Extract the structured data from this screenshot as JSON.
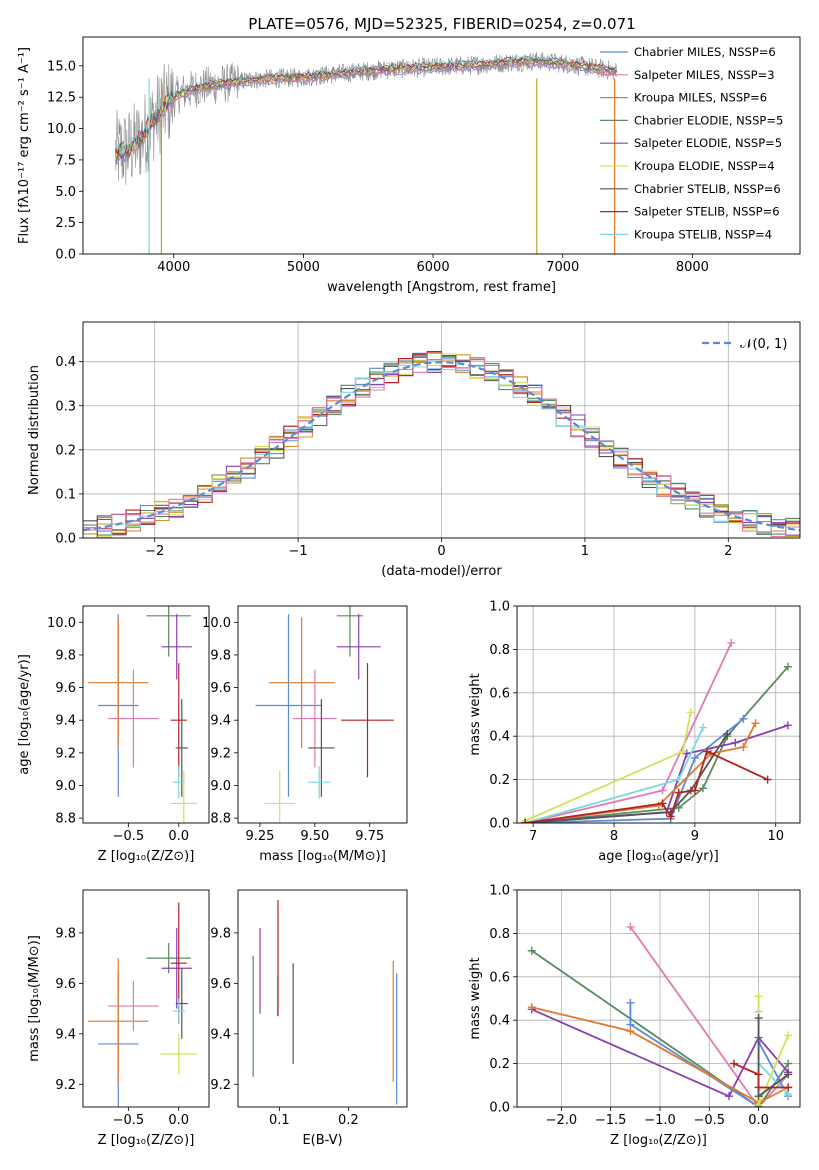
{
  "figure": {
    "title": "PLATE=0576, MJD=52325, FIBERID=0254, z=0.071"
  },
  "colors": {
    "series": [
      "#5b8bd6",
      "#e07b2c",
      "#c99a2e",
      "#5b8a5e",
      "#8a3fb0",
      "#d4e05a",
      "#555555",
      "#b22222",
      "#7fd6e0",
      "#e07ab0",
      "#8a8a8a"
    ]
  },
  "chart_data": [
    {
      "id": "spectrum",
      "type": "line",
      "xlabel": "wavelength [Angstrom, rest frame]",
      "ylabel": "Flux [fλ10⁻¹⁷ erg cm⁻² s⁻¹ A⁻¹]",
      "xlim": [
        3300,
        8830
      ],
      "ylim": [
        0,
        17.3
      ],
      "xticks": [
        "4000",
        "5000",
        "6000",
        "7000",
        "8000"
      ],
      "yticks": [
        "0.0",
        "2.5",
        "5.0",
        "7.5",
        "10.0",
        "12.5",
        "15.0"
      ],
      "legend_position": "right",
      "series": [
        {
          "name": "Chabrier MILES, NSSP=6",
          "color": "#5b8bd6"
        },
        {
          "name": "Salpeter MILES, NSSP=3",
          "color": "#e07ab0"
        },
        {
          "name": "Kroupa MILES, NSSP=6",
          "color": "#e07b2c"
        },
        {
          "name": "Chabrier ELODIE, NSSP=5",
          "color": "#5b8a5e"
        },
        {
          "name": "Salpeter ELODIE, NSSP=5",
          "color": "#8a3fb0"
        },
        {
          "name": "Kroupa ELODIE, NSSP=4",
          "color": "#d4e05a"
        },
        {
          "name": "Chabrier STELIB, NSSP=6",
          "color": "#555555"
        },
        {
          "name": "Salpeter STELIB, NSSP=6",
          "color": "#b22222"
        },
        {
          "name": "Kroupa STELIB, NSSP=4",
          "color": "#7fd6e0"
        }
      ],
      "continuum": {
        "x": [
          3550,
          3650,
          3750,
          3850,
          3950,
          4050,
          4200,
          4400,
          4600,
          4800,
          5000,
          5200,
          5400,
          5600,
          5800,
          6000,
          6200,
          6400,
          6600,
          6800,
          7000,
          7200,
          7400,
          7600,
          7800,
          8000,
          8200,
          8400,
          8600,
          8800
        ],
        "y": [
          8.0,
          8.3,
          9.2,
          10.8,
          12.0,
          12.8,
          13.3,
          13.6,
          13.9,
          14.0,
          14.1,
          14.3,
          14.5,
          14.7,
          14.8,
          14.9,
          15.0,
          15.1,
          15.3,
          15.4,
          15.2,
          14.9,
          14.6,
          14.0,
          13.6,
          13.3,
          13.1,
          12.9,
          12.7,
          12.5
        ]
      }
    },
    {
      "id": "residual-hist",
      "type": "bar",
      "xlabel": "(data-model)/error",
      "ylabel": "Normed distribution",
      "xlim": [
        -2.5,
        2.5
      ],
      "ylim": [
        0,
        0.49
      ],
      "xticks": [
        "−2",
        "−1",
        "0",
        "1",
        "2"
      ],
      "yticks": [
        "0.0",
        "0.1",
        "0.2",
        "0.3",
        "0.4"
      ],
      "legend": "𝒩(0, 1)",
      "legend_position": "top-right",
      "bin_width": 0.1,
      "grid": true
    },
    {
      "id": "age-vs-z",
      "type": "scatter",
      "xlabel": "Z [log₁₀(Z/Z⊙)]",
      "ylabel": "age  [log₁₀(age/yr)]",
      "xlim": [
        -0.95,
        0.3
      ],
      "ylim": [
        8.77,
        10.1
      ],
      "xticks": [
        "−0.5",
        "0.0"
      ],
      "yticks": [
        "8.8",
        "9.0",
        "9.2",
        "9.4",
        "9.6",
        "9.8",
        "10.0"
      ],
      "points": [
        {
          "color": "#5b8bd6",
          "x": -0.6,
          "xerr": 0.2,
          "y": 9.49,
          "yerr": 0.56
        },
        {
          "color": "#e07b2c",
          "x": -0.6,
          "xerr": 0.3,
          "y": 9.63,
          "yerr": 0.4
        },
        {
          "color": "#e07ab0",
          "x": -0.45,
          "xerr": 0.25,
          "y": 9.41,
          "yerr": 0.3
        },
        {
          "color": "#5b8a5e",
          "x": -0.1,
          "xerr": 0.22,
          "y": 10.04,
          "yerr": 0.25
        },
        {
          "color": "#8a3fb0",
          "x": -0.02,
          "xerr": 0.15,
          "y": 9.85,
          "yerr": 0.2
        },
        {
          "color": "#b22222",
          "x": 0.0,
          "xerr": 0.08,
          "y": 9.4,
          "yerr": 0.35
        },
        {
          "color": "#555555",
          "x": 0.03,
          "xerr": 0.06,
          "y": 9.23,
          "yerr": 0.3
        },
        {
          "color": "#7fd6e0",
          "x": 0.0,
          "xerr": 0.06,
          "y": 9.02,
          "yerr": 0.1
        },
        {
          "color": "#d4e05a",
          "x": 0.05,
          "xerr": 0.13,
          "y": 8.89,
          "yerr": 0.2
        }
      ]
    },
    {
      "id": "age-vs-mass",
      "type": "scatter",
      "xlabel": "mass [log₁₀(M/M⊙)]",
      "ylabel": "",
      "xlim": [
        9.15,
        9.92
      ],
      "ylim": [
        8.77,
        10.1
      ],
      "xticks": [
        "9.25",
        "9.50",
        "9.75"
      ],
      "yticks": [
        "8.8",
        "9.0",
        "9.2",
        "9.4",
        "9.6",
        "9.8",
        "10.0"
      ],
      "points": [
        {
          "color": "#5b8bd6",
          "x": 9.38,
          "xerr": 0.15,
          "y": 9.49,
          "yerr": 0.56
        },
        {
          "color": "#e07b2c",
          "x": 9.44,
          "xerr": 0.15,
          "y": 9.63,
          "yerr": 0.4
        },
        {
          "color": "#e07ab0",
          "x": 9.5,
          "xerr": 0.1,
          "y": 9.41,
          "yerr": 0.3
        },
        {
          "color": "#5b8a5e",
          "x": 9.66,
          "xerr": 0.06,
          "y": 10.04,
          "yerr": 0.25
        },
        {
          "color": "#8a3fb0",
          "x": 9.7,
          "xerr": 0.1,
          "y": 9.85,
          "yerr": 0.2
        },
        {
          "color": "#b22222",
          "x": 9.74,
          "xerr": 0.12,
          "y": 9.4,
          "yerr": 0.35
        },
        {
          "color": "#555555",
          "x": 9.53,
          "xerr": 0.06,
          "y": 9.23,
          "yerr": 0.3
        },
        {
          "color": "#7fd6e0",
          "x": 9.52,
          "xerr": 0.05,
          "y": 9.02,
          "yerr": 0.1
        },
        {
          "color": "#d4e05a",
          "x": 9.34,
          "xerr": 0.07,
          "y": 8.89,
          "yerr": 0.2
        }
      ]
    },
    {
      "id": "weight-vs-age",
      "type": "line",
      "xlabel": "age  [log₁₀(age/yr)]",
      "ylabel": "mass weight",
      "xlim": [
        6.8,
        10.3
      ],
      "ylim": [
        0,
        1.0
      ],
      "xticks": [
        "7",
        "8",
        "9",
        "10"
      ],
      "yticks": [
        "0.0",
        "0.2",
        "0.4",
        "0.6",
        "0.8",
        "1.0"
      ],
      "grid": true,
      "series": [
        {
          "color": "#e07ab0",
          "points": [
            [
              6.9,
              0.0
            ],
            [
              8.6,
              0.15
            ],
            [
              9.45,
              0.83
            ]
          ]
        },
        {
          "color": "#5b8a5e",
          "points": [
            [
              6.9,
              0.0
            ],
            [
              8.8,
              0.07
            ],
            [
              9.1,
              0.16
            ],
            [
              9.4,
              0.4
            ],
            [
              10.15,
              0.72
            ]
          ]
        },
        {
          "color": "#8a3fb0",
          "points": [
            [
              6.9,
              0.0
            ],
            [
              8.65,
              0.05
            ],
            [
              8.9,
              0.32
            ],
            [
              9.5,
              0.37
            ],
            [
              10.15,
              0.45
            ]
          ]
        },
        {
          "color": "#5b8bd6",
          "points": [
            [
              6.9,
              0.0
            ],
            [
              8.7,
              0.02
            ],
            [
              9.0,
              0.3
            ],
            [
              9.6,
              0.48
            ]
          ]
        },
        {
          "color": "#e07b2c",
          "points": [
            [
              6.9,
              0.0
            ],
            [
              8.55,
              0.08
            ],
            [
              9.2,
              0.32
            ],
            [
              9.6,
              0.35
            ],
            [
              9.75,
              0.46
            ]
          ]
        },
        {
          "color": "#7fd6e0",
          "points": [
            [
              6.9,
              0.0
            ],
            [
              8.8,
              0.2
            ],
            [
              9.1,
              0.44
            ]
          ]
        },
        {
          "color": "#d4e05a",
          "points": [
            [
              6.9,
              0.01
            ],
            [
              8.85,
              0.33
            ],
            [
              8.95,
              0.51
            ]
          ]
        },
        {
          "color": "#555555",
          "points": [
            [
              6.9,
              0.0
            ],
            [
              8.7,
              0.05
            ],
            [
              8.95,
              0.15
            ],
            [
              9.4,
              0.41
            ]
          ]
        },
        {
          "color": "#b22222",
          "points": [
            [
              6.9,
              0.0
            ],
            [
              8.6,
              0.09
            ],
            [
              8.7,
              0.03
            ],
            [
              8.8,
              0.14
            ],
            [
              9.0,
              0.15
            ],
            [
              9.15,
              0.33
            ],
            [
              9.9,
              0.2
            ]
          ]
        }
      ]
    },
    {
      "id": "mass-vs-z",
      "type": "scatter",
      "xlabel": "Z [log₁₀(Z/Z⊙)]",
      "ylabel": "mass [log₁₀(M/M⊙)]",
      "xlim": [
        -0.95,
        0.3
      ],
      "ylim": [
        9.11,
        9.97
      ],
      "xticks": [
        "−0.5",
        "0.0"
      ],
      "yticks": [
        "9.2",
        "9.4",
        "9.6",
        "9.8"
      ],
      "points": [
        {
          "color": "#5b8bd6",
          "x": -0.6,
          "xerr": 0.2,
          "y": 9.36,
          "yerr": 0.28
        },
        {
          "color": "#e07b2c",
          "x": -0.6,
          "xerr": 0.3,
          "y": 9.45,
          "yerr": 0.25
        },
        {
          "color": "#e07ab0",
          "x": -0.45,
          "xerr": 0.25,
          "y": 9.51,
          "yerr": 0.1
        },
        {
          "color": "#5b8a5e",
          "x": -0.1,
          "xerr": 0.22,
          "y": 9.7,
          "yerr": 0.06
        },
        {
          "color": "#8a3fb0",
          "x": -0.02,
          "xerr": 0.15,
          "y": 9.66,
          "yerr": 0.16
        },
        {
          "color": "#b22222",
          "x": 0.0,
          "xerr": 0.08,
          "y": 9.68,
          "yerr": 0.24
        },
        {
          "color": "#555555",
          "x": 0.03,
          "xerr": 0.06,
          "y": 9.52,
          "yerr": 0.14
        },
        {
          "color": "#7fd6e0",
          "x": 0.0,
          "xerr": 0.06,
          "y": 9.49,
          "yerr": 0.05
        },
        {
          "color": "#d4e05a",
          "x": 0.0,
          "xerr": 0.18,
          "y": 9.32,
          "yerr": 0.08
        }
      ]
    },
    {
      "id": "mass-vs-ebv",
      "type": "scatter",
      "xlabel": "E(B-V)",
      "ylabel": "",
      "xlim": [
        0.04,
        0.285
      ],
      "ylim": [
        9.11,
        9.97
      ],
      "xticks": [
        "0.1",
        "0.2"
      ],
      "yticks": [
        "9.2",
        "9.4",
        "9.6",
        "9.8"
      ],
      "points": [
        {
          "color": "#5b8a5e",
          "x": 0.062,
          "y": 9.47,
          "yerr": 0.24
        },
        {
          "color": "#8a3fb0",
          "x": 0.072,
          "y": 9.65,
          "yerr": 0.17
        },
        {
          "color": "#7fd6e0",
          "x": 0.097,
          "y": 9.55,
          "yerr": 0.08
        },
        {
          "color": "#b22222",
          "x": 0.098,
          "y": 9.7,
          "yerr": 0.23
        },
        {
          "color": "#555555",
          "x": 0.12,
          "y": 9.48,
          "yerr": 0.2
        },
        {
          "color": "#e07b2c",
          "x": 0.265,
          "y": 9.45,
          "yerr": 0.24
        },
        {
          "color": "#5b8bd6",
          "x": 0.27,
          "y": 9.38,
          "yerr": 0.26
        }
      ]
    },
    {
      "id": "weight-vs-z",
      "type": "line",
      "xlabel": "Z [log₁₀(Z/Z⊙)]",
      "ylabel": "mass weight",
      "xlim": [
        -2.45,
        0.42
      ],
      "ylim": [
        0,
        1.0
      ],
      "xticks": [
        "−2.0",
        "−1.5",
        "−1.0",
        "−0.5",
        "0.0"
      ],
      "yticks": [
        "0.0",
        "0.2",
        "0.4",
        "0.6",
        "0.8",
        "1.0"
      ],
      "grid": true,
      "series": [
        {
          "color": "#e07ab0",
          "points": [
            [
              -1.3,
              0.83
            ],
            [
              0.0,
              0.0
            ],
            [
              0.3,
              0.15
            ]
          ]
        },
        {
          "color": "#5b8a5e",
          "points": [
            [
              -2.3,
              0.72
            ],
            [
              0.0,
              0.0
            ],
            [
              0.3,
              0.2
            ]
          ]
        },
        {
          "color": "#8a3fb0",
          "points": [
            [
              -2.3,
              0.45
            ],
            [
              -0.3,
              0.05
            ],
            [
              0.0,
              0.32
            ],
            [
              0.3,
              0.16
            ]
          ]
        },
        {
          "color": "#5b8bd6",
          "points": [
            [
              -1.3,
              0.48
            ],
            [
              -1.3,
              0.38
            ],
            [
              0.0,
              0.0
            ],
            [
              0.0,
              0.3
            ],
            [
              0.3,
              0.05
            ]
          ]
        },
        {
          "color": "#e07b2c",
          "points": [
            [
              -2.3,
              0.46
            ],
            [
              -1.3,
              0.35
            ],
            [
              0.0,
              0.02
            ],
            [
              0.3,
              0.09
            ]
          ]
        },
        {
          "color": "#7fd6e0",
          "points": [
            [
              0.0,
              0.44
            ],
            [
              0.0,
              0.2
            ],
            [
              0.3,
              0.06
            ]
          ]
        },
        {
          "color": "#d4e05a",
          "points": [
            [
              0.0,
              0.51
            ],
            [
              0.0,
              0.01
            ],
            [
              0.3,
              0.33
            ]
          ]
        },
        {
          "color": "#555555",
          "points": [
            [
              0.0,
              0.41
            ],
            [
              0.0,
              0.05
            ],
            [
              0.3,
              0.15
            ]
          ]
        },
        {
          "color": "#b22222",
          "points": [
            [
              -0.25,
              0.2
            ],
            [
              0.0,
              0.15
            ],
            [
              0.0,
              0.09
            ],
            [
              0.3,
              0.09
            ]
          ]
        }
      ]
    }
  ]
}
